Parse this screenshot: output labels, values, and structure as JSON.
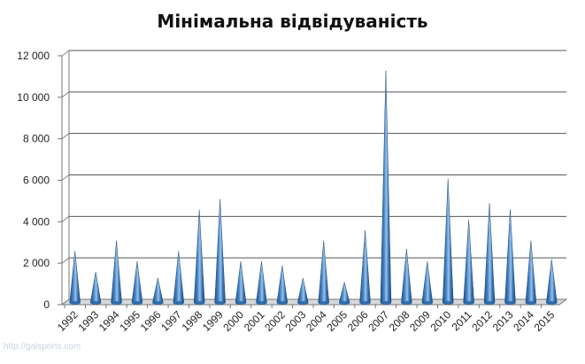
{
  "chart_data": {
    "type": "bar",
    "title": "Мінімальна відвідуваність",
    "categories": [
      "1992",
      "1993",
      "1994",
      "1995",
      "1996",
      "1997",
      "1998",
      "1999",
      "2000",
      "2001",
      "2002",
      "2003",
      "2004",
      "2005",
      "2006",
      "2007",
      "2008",
      "2009",
      "2010",
      "2011",
      "2012",
      "2013",
      "2014",
      "2015"
    ],
    "values": [
      2500,
      1500,
      3000,
      2000,
      1200,
      2500,
      4500,
      5000,
      2000,
      2000,
      1800,
      1200,
      3000,
      1000,
      3500,
      11200,
      2600,
      2000,
      6000,
      4000,
      4800,
      4500,
      3000,
      2100
    ],
    "ylim": [
      0,
      12000
    ],
    "yticks": [
      0,
      2000,
      4000,
      6000,
      8000,
      10000,
      12000
    ],
    "ytick_labels": [
      "0",
      "2 000",
      "4 000",
      "6 000",
      "8 000",
      "10 000",
      "12 000"
    ],
    "grid": true,
    "legend": "none",
    "bar_color": "#2e6aa8"
  },
  "watermark": "http://galsports.com"
}
